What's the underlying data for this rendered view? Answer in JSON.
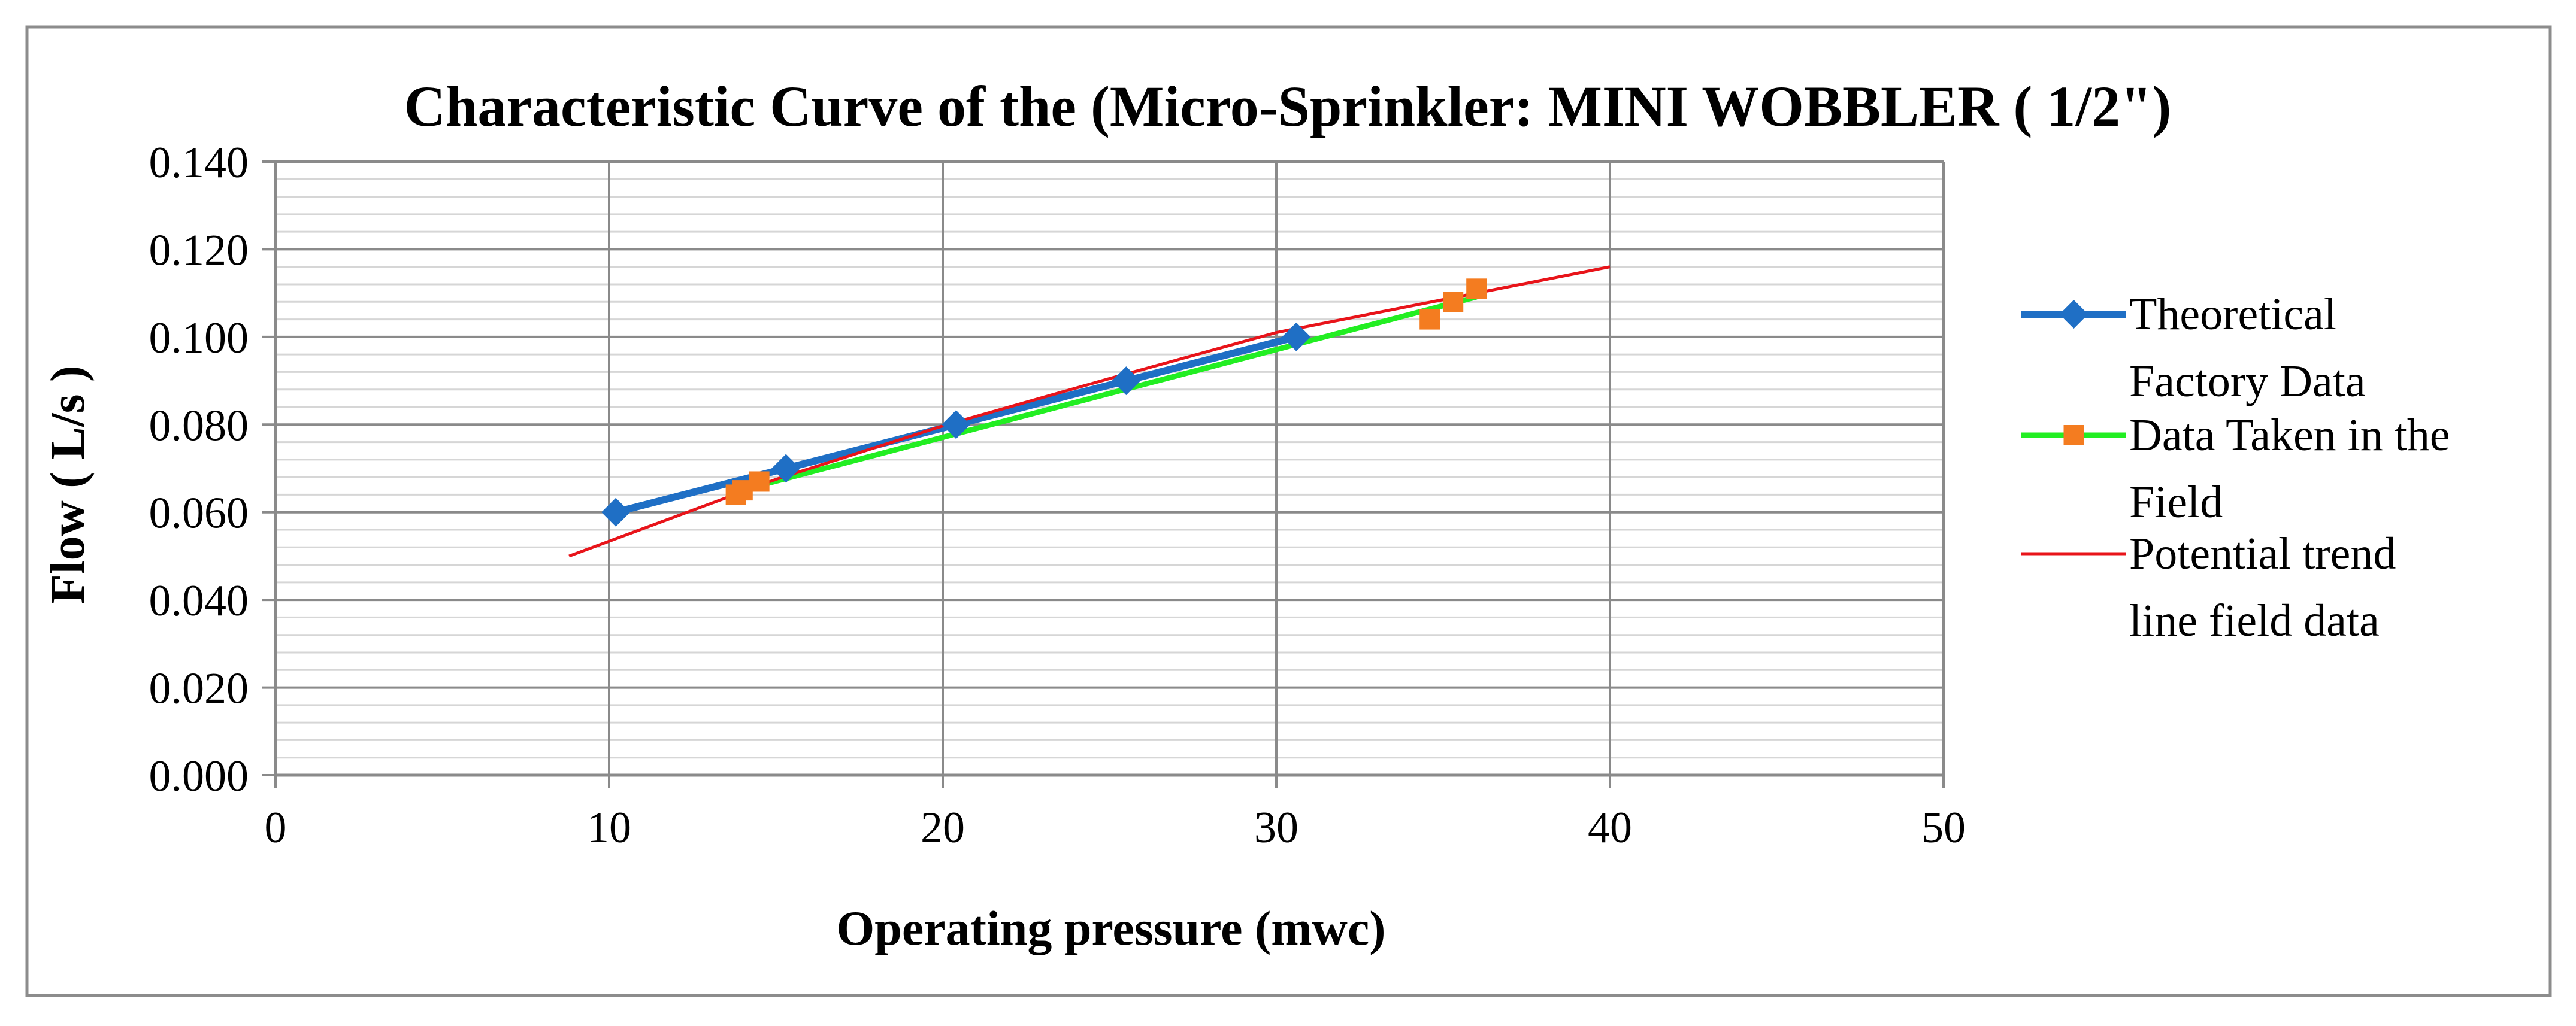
{
  "chart_data": {
    "type": "scatter",
    "title": "Characteristic Curve of the (Micro-Sprinkler: MINI WOBBLER ( 1/2\")",
    "xlabel": "Operating pressure (mwc)",
    "ylabel": "Flow ( L/s )",
    "xlim": [
      0,
      50
    ],
    "ylim": [
      0,
      0.14
    ],
    "xticks": [
      "0",
      "10",
      "20",
      "30",
      "40",
      "50"
    ],
    "xtick_values": [
      0,
      10,
      20,
      30,
      40,
      50
    ],
    "yticks": [
      "0.000",
      "0.020",
      "0.040",
      "0.060",
      "0.080",
      "0.100",
      "0.120",
      "0.140"
    ],
    "ytick_values": [
      0,
      0.02,
      0.04,
      0.06,
      0.08,
      0.1,
      0.12,
      0.14
    ],
    "grid": true,
    "legend_position": "right",
    "series": [
      {
        "name": "Theoretical Factory Data",
        "legend_lines": [
          "Theoretical",
          "Factory Data"
        ],
        "color": "#1f6fc5",
        "marker": "diamond",
        "x": [
          10.2,
          15.3,
          20.4,
          25.5,
          30.6
        ],
        "y": [
          0.06,
          0.07,
          0.08,
          0.09,
          0.1
        ]
      },
      {
        "name": "Data Taken in the Field",
        "legend_lines": [
          "Data Taken in the",
          "Field"
        ],
        "color": "#f47c20",
        "line_color": "#22ee22",
        "marker": "square",
        "x": [
          13.8,
          14.0,
          14.5,
          34.6,
          35.3,
          36.0
        ],
        "y": [
          0.064,
          0.065,
          0.067,
          0.104,
          0.108,
          0.111
        ]
      },
      {
        "name": "Potential trend line field data",
        "legend_lines": [
          "Potential trend",
          "line field data"
        ],
        "color": "#e8141a",
        "type": "trendline",
        "x": [
          8.8,
          15,
          20,
          25,
          30,
          35,
          40
        ],
        "y": [
          0.05,
          0.0675,
          0.0797,
          0.0905,
          0.101,
          0.1085,
          0.116
        ]
      }
    ]
  }
}
